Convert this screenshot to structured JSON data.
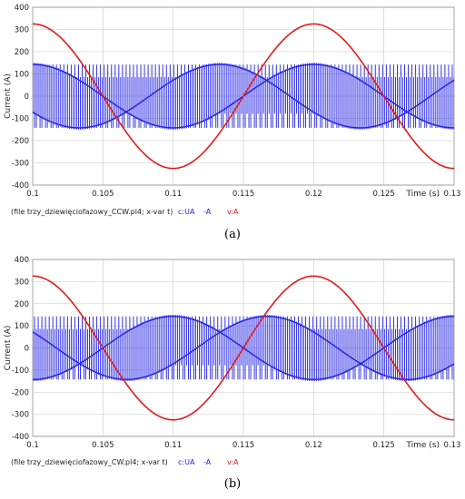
{
  "chart_data": [
    {
      "type": "line",
      "panel_label": "(a)",
      "xlabel": "Time (s)",
      "ylabel": "Current (A)",
      "xlim": [
        0.1,
        0.13
      ],
      "ylim": [
        -400,
        400
      ],
      "x_ticks": [
        0.1,
        0.105,
        0.11,
        0.115,
        0.12,
        0.125,
        0.13
      ],
      "x_tick_labels": [
        "0.1",
        "0.105",
        "0.11",
        "0.115",
        "0.12",
        "0.125",
        "0.13"
      ],
      "y_ticks": [
        400,
        300,
        200,
        100,
        0,
        -100,
        -200,
        -300,
        -400
      ],
      "grid": true,
      "legend_file": "(file trzy_dziewięciofazowy_CCW.pl4; x-var t)",
      "legend_items": [
        "c:UA",
        "-A",
        "v:A"
      ],
      "colors": {
        "current": "#1f1fe6",
        "voltage": "#e31a1a"
      },
      "series": [
        {
          "name": "c:UA -A",
          "kind": "pwm_current",
          "amplitude": 150,
          "envelope_peak_times": [
            0.1,
            0.12
          ],
          "envelope_trough_times": [
            0.11,
            0.13
          ]
        },
        {
          "name": "v:A",
          "kind": "sine",
          "amplitude": 325,
          "peaks": [
            {
              "x": 0.1,
              "y": 325
            },
            {
              "x": 0.12,
              "y": 325
            }
          ],
          "troughs": [
            {
              "x": 0.11,
              "y": -325
            },
            {
              "x": 0.13,
              "y": -325
            }
          ],
          "period": 0.02
        }
      ]
    },
    {
      "type": "line",
      "panel_label": "(b)",
      "xlabel": "Time (s)",
      "ylabel": "Current (A)",
      "xlim": [
        0.1,
        0.13
      ],
      "ylim": [
        -400,
        400
      ],
      "x_ticks": [
        0.1,
        0.105,
        0.11,
        0.115,
        0.12,
        0.125,
        0.13
      ],
      "x_tick_labels": [
        "0.1",
        "0.105",
        "0.11",
        "0.115",
        "0.12",
        "0.125",
        "0.13"
      ],
      "y_ticks": [
        400,
        300,
        200,
        100,
        0,
        -100,
        -200,
        -300,
        -400
      ],
      "grid": true,
      "legend_file": "(file trzy_dziewięciofazowy_CW.pl4; x-var t)",
      "legend_items": [
        "c:UA",
        "-A",
        "v:A"
      ],
      "colors": {
        "current": "#1f1fe6",
        "voltage": "#e31a1a"
      },
      "series": [
        {
          "name": "c:UA -A",
          "kind": "pwm_current",
          "amplitude": 150,
          "envelope_peak_times": [
            0.11
          ],
          "envelope_trough_times": [
            0.1,
            0.12
          ]
        },
        {
          "name": "v:A",
          "kind": "sine",
          "amplitude": 325,
          "peaks": [
            {
              "x": 0.1,
              "y": 325
            },
            {
              "x": 0.12,
              "y": 325
            }
          ],
          "troughs": [
            {
              "x": 0.11,
              "y": -325
            },
            {
              "x": 0.13,
              "y": -325
            }
          ],
          "period": 0.02
        }
      ]
    }
  ]
}
